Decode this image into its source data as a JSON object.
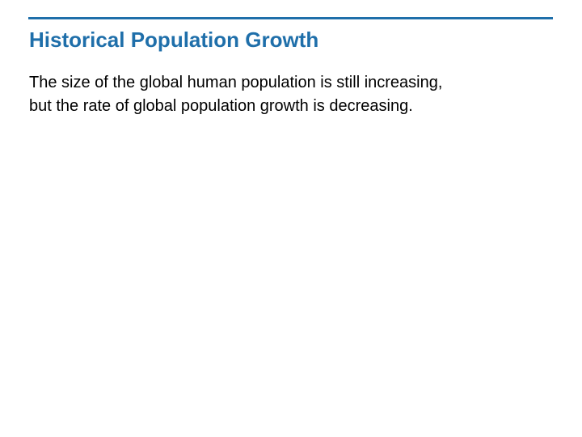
{
  "slide": {
    "title": "Historical Population Growth",
    "body_lines": [
      "The size of the global human population is still increasing,",
      "but the rate of global population growth is decreasing."
    ]
  },
  "colors": {
    "accent": "#1f6faa",
    "text": "#000000",
    "background": "#ffffff"
  }
}
